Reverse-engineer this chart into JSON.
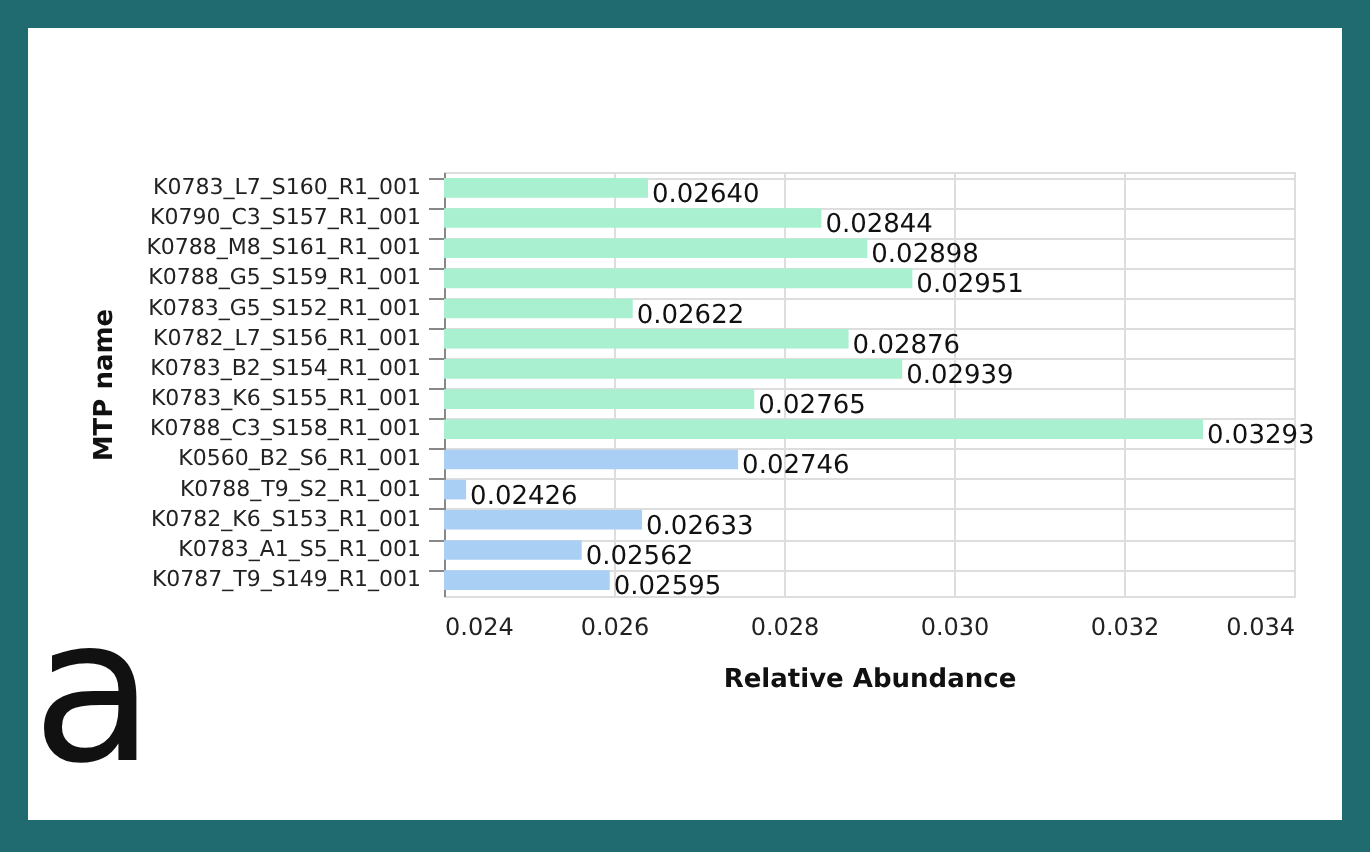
{
  "chart_data": {
    "type": "bar",
    "orientation": "horizontal",
    "xlabel": "Relative Abundance",
    "ylabel": "MTP name",
    "categories": [
      "K0783_L7_S160_R1_001",
      "K0790_C3_S157_R1_001",
      "K0788_M8_S161_R1_001",
      "K0788_G5_S159_R1_001",
      "K0783_G5_S152_R1_001",
      "K0782_L7_S156_R1_001",
      "K0783_B2_S154_R1_001",
      "K0783_K6_S155_R1_001",
      "K0788_C3_S158_R1_001",
      "K0560_B2_S6_R1_001",
      "K0788_T9_S2_R1_001",
      "K0782_K6_S153_R1_001",
      "K0783_A1_S5_R1_001",
      "K0787_T9_S149_R1_001"
    ],
    "values": [
      0.0264,
      0.02844,
      0.02898,
      0.02951,
      0.02622,
      0.02876,
      0.02939,
      0.02765,
      0.03293,
      0.02746,
      0.02426,
      0.02633,
      0.02562,
      0.02595
    ],
    "colors": [
      "#a8f0cf",
      "#a8f0cf",
      "#a8f0cf",
      "#a8f0cf",
      "#a8f0cf",
      "#a8f0cf",
      "#a8f0cf",
      "#a8f0cf",
      "#a8f0cf",
      "#aacff5",
      "#aacff5",
      "#aacff5",
      "#aacff5",
      "#aacff5"
    ],
    "xlim": [
      0.024,
      0.034
    ],
    "xticks": [
      "0.024",
      "0.026",
      "0.028",
      "0.030",
      "0.032",
      "0.034"
    ],
    "value_labels": [
      "0.02640",
      "0.02844",
      "0.02898",
      "0.02951",
      "0.02622",
      "0.02876",
      "0.02939",
      "0.02765",
      "0.03293",
      "0.02746",
      "0.02426",
      "0.02633",
      "0.02562",
      "0.02595"
    ],
    "grid": true,
    "annotations": [
      "a"
    ]
  }
}
